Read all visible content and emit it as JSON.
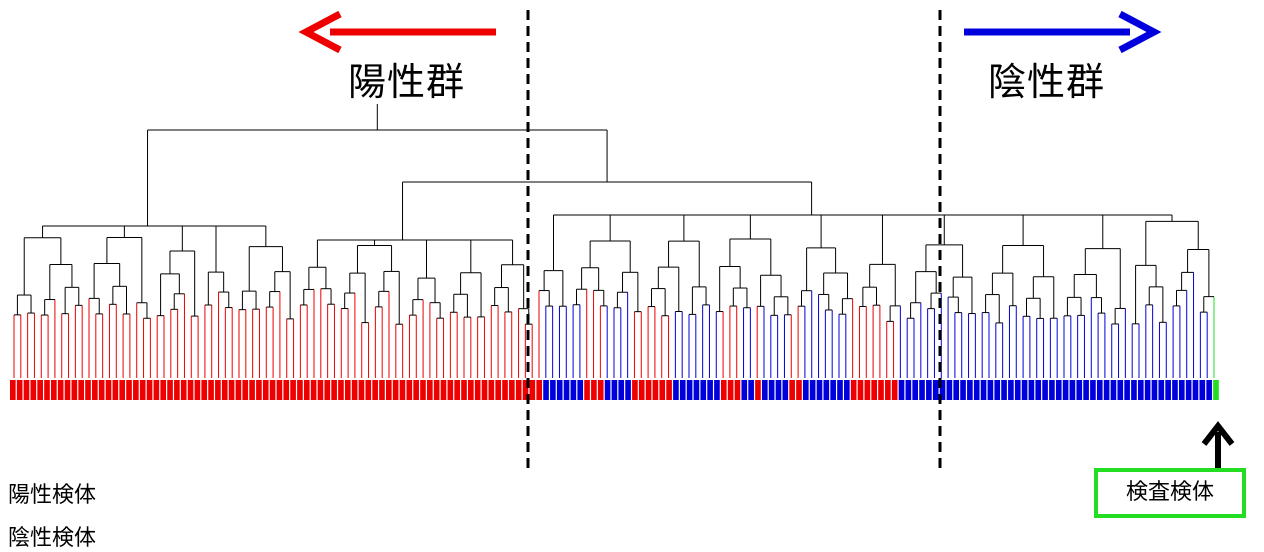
{
  "labels": {
    "positive_group": "陽性群",
    "negative_group": "陰性群",
    "positive_sample": "陽性検体",
    "negative_sample": "陰性検体",
    "test_sample": "検査検体"
  },
  "colors": {
    "positive": "#ee0000",
    "negative": "#0000dd",
    "test": "#22dd22",
    "tree": "#000000"
  },
  "sample_strip": "PPPPPPPPPPPPPPPPPPPPPPPPPPPPPPPPPPPPPPPPPPPPPPPPPPPPPPPPPPPPPPPPPPPPPPPPPPPPPPNNNNNNPPPNNNNPPPPPPNNNNNNNPPPNNPNNNNPPNNNNNNNPPPPPPPNNNNNNNNNNNNNNNNNNNNNNNNNNNNNNNNNNNNNNNNNNNNNNT"
}
